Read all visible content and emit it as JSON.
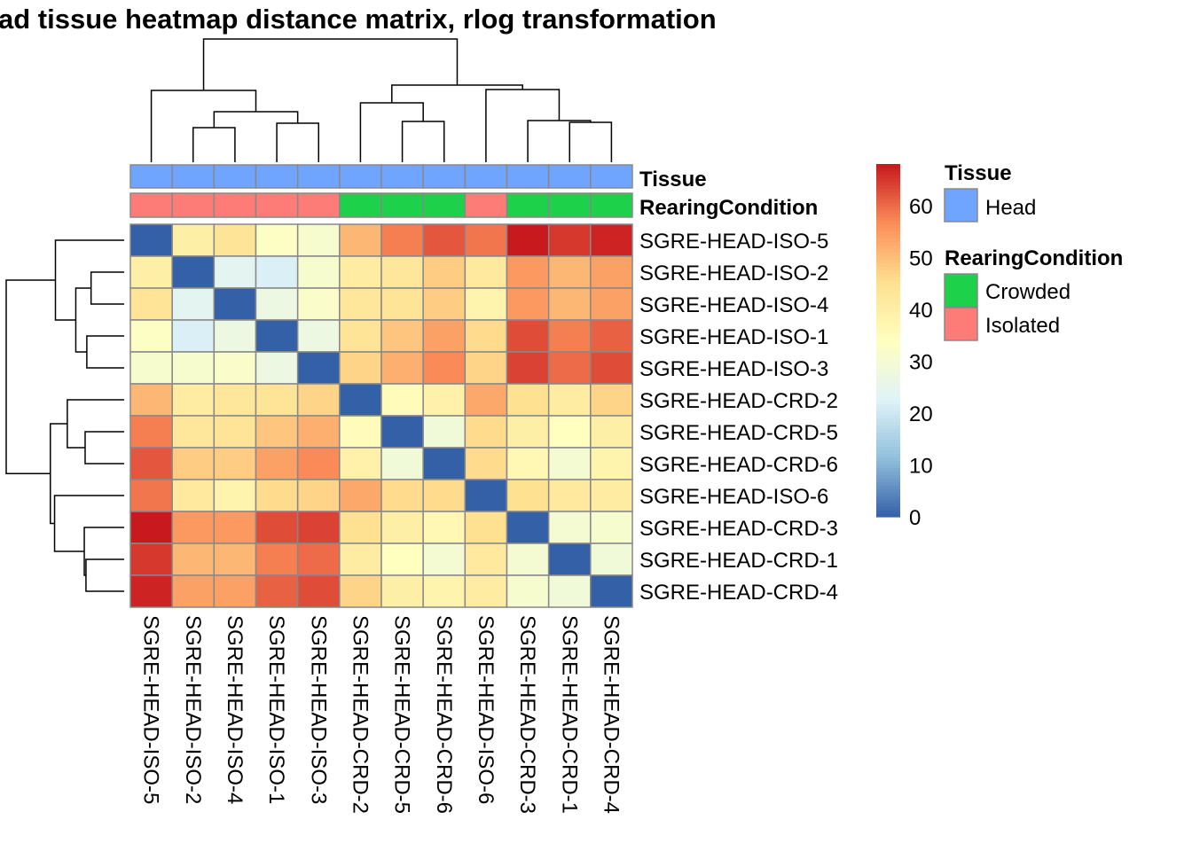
{
  "chart_data": {
    "type": "heatmap",
    "title": "ad tissue heatmap distance matrix, rlog transformation",
    "row_labels": [
      "SGRE-HEAD-ISO-5",
      "SGRE-HEAD-ISO-2",
      "SGRE-HEAD-ISO-4",
      "SGRE-HEAD-ISO-1",
      "SGRE-HEAD-ISO-3",
      "SGRE-HEAD-CRD-2",
      "SGRE-HEAD-CRD-5",
      "SGRE-HEAD-CRD-6",
      "SGRE-HEAD-ISO-6",
      "SGRE-HEAD-CRD-3",
      "SGRE-HEAD-CRD-1",
      "SGRE-HEAD-CRD-4"
    ],
    "col_labels": [
      "SGRE-HEAD-ISO-5",
      "SGRE-HEAD-ISO-2",
      "SGRE-HEAD-ISO-4",
      "SGRE-HEAD-ISO-1",
      "SGRE-HEAD-ISO-3",
      "SGRE-HEAD-CRD-2",
      "SGRE-HEAD-CRD-5",
      "SGRE-HEAD-CRD-6",
      "SGRE-HEAD-ISO-6",
      "SGRE-HEAD-CRD-3",
      "SGRE-HEAD-CRD-1",
      "SGRE-HEAD-CRD-4"
    ],
    "values": [
      [
        0,
        40,
        44,
        33,
        31,
        51,
        58,
        62,
        59,
        68,
        65,
        67
      ],
      [
        40,
        0,
        24,
        22,
        31,
        41,
        43,
        48,
        42,
        55,
        51,
        54
      ],
      [
        44,
        24,
        0,
        27,
        32,
        43,
        44,
        48,
        38,
        55,
        51,
        54
      ],
      [
        33,
        22,
        27,
        0,
        27,
        44,
        49,
        54,
        46,
        63,
        58,
        61
      ],
      [
        31,
        31,
        32,
        27,
        0,
        47,
        52,
        57,
        47,
        64,
        60,
        63
      ],
      [
        51,
        41,
        43,
        44,
        47,
        0,
        35,
        39,
        53,
        45,
        41,
        47
      ],
      [
        58,
        43,
        44,
        49,
        52,
        35,
        0,
        29,
        46,
        40,
        34,
        40
      ],
      [
        62,
        48,
        48,
        54,
        57,
        39,
        29,
        0,
        46,
        37,
        30,
        38
      ],
      [
        59,
        42,
        38,
        46,
        47,
        53,
        46,
        46,
        0,
        45,
        42,
        41
      ],
      [
        68,
        55,
        55,
        63,
        64,
        45,
        40,
        37,
        45,
        0,
        30,
        31
      ],
      [
        65,
        51,
        51,
        58,
        60,
        41,
        34,
        30,
        42,
        30,
        0,
        29
      ],
      [
        67,
        54,
        54,
        61,
        63,
        47,
        40,
        38,
        41,
        31,
        29,
        0
      ]
    ],
    "color_scale": {
      "min": 0,
      "max": 68,
      "ticks": [
        "0",
        "10",
        "20",
        "30",
        "40",
        "50",
        "60"
      ],
      "colors": [
        "#3460a8",
        "#91bfdb",
        "#e0f3f8",
        "#ffffbf",
        "#fee090",
        "#fc8d59",
        "#c8191e"
      ]
    },
    "annotations": {
      "tissue": {
        "name": "Tissue",
        "values": [
          "Head",
          "Head",
          "Head",
          "Head",
          "Head",
          "Head",
          "Head",
          "Head",
          "Head",
          "Head",
          "Head",
          "Head"
        ]
      },
      "rearing": {
        "name": "RearingCondition",
        "values": [
          "Isolated",
          "Isolated",
          "Isolated",
          "Isolated",
          "Isolated",
          "Crowded",
          "Crowded",
          "Crowded",
          "Isolated",
          "Crowded",
          "Crowded",
          "Crowded"
        ]
      }
    },
    "legend": {
      "tissue_title": "Tissue",
      "tissue_items": [
        {
          "label": "Head",
          "color": "#6fa5fe"
        }
      ],
      "rearing_title": "RearingCondition",
      "rearing_items": [
        {
          "label": "Crowded",
          "color": "#1dd14b"
        },
        {
          "label": "Isolated",
          "color": "#fe7c78"
        }
      ],
      "placement": "right"
    },
    "dendrogram": "clustered rows and columns"
  }
}
